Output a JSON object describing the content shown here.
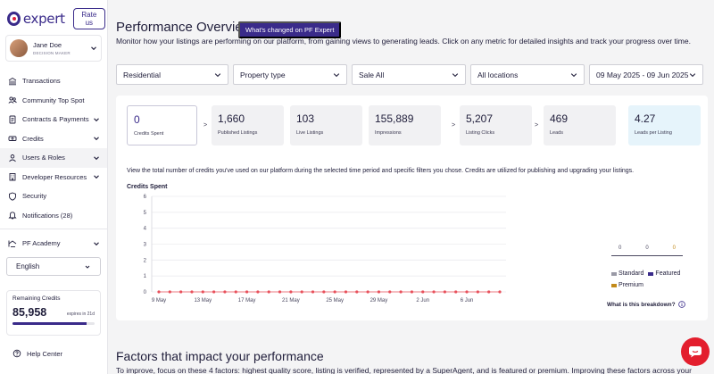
{
  "brand": {
    "logo_text": "expert",
    "rate_label": "Rate us"
  },
  "user": {
    "name": "Jane Doe",
    "role": "DECISION MAKER"
  },
  "sidebar": {
    "items": [
      {
        "label": "Transactions",
        "icon": "bank-icon",
        "expandable": false
      },
      {
        "label": "Community Top Spot",
        "icon": "users-group-icon",
        "expandable": false
      },
      {
        "label": "Contracts & Payments",
        "icon": "document-icon",
        "expandable": true
      },
      {
        "label": "Credits",
        "icon": "coins-icon",
        "expandable": true
      },
      {
        "label": "Users & Roles",
        "icon": "user-icon",
        "expandable": true,
        "active": true
      },
      {
        "label": "Developer Resources",
        "icon": "building-icon",
        "expandable": true
      },
      {
        "label": "Security",
        "icon": "shield-icon",
        "expandable": false
      },
      {
        "label": "Notifications (28)",
        "icon": "bell-icon",
        "expandable": false
      },
      {
        "label": "PF Academy",
        "icon": "academy-icon",
        "expandable": true
      }
    ],
    "language": "English",
    "remaining_credits": {
      "title": "Remaining Credits",
      "value": "85,958",
      "expires": "expires in 21d",
      "progress": 0.9
    },
    "help_label": "Help Center"
  },
  "main": {
    "title": "Performance Overview",
    "whats_changed": "What's changed on PF Expert",
    "subtitle": "Monitor how your listings are performing on our platform, from gaining views to generating leads. Click on any metric for detailed insights and track your progress over time.",
    "filters": [
      {
        "value": "Residential"
      },
      {
        "value": "Property type"
      },
      {
        "value": "Sale All"
      },
      {
        "value": "All locations"
      },
      {
        "value": "09 May 2025 - 09 Jun 2025"
      }
    ],
    "metrics": [
      {
        "value": "0",
        "label": "Credits Spent"
      },
      {
        "value": "1,660",
        "label": "Published Listings"
      },
      {
        "value": "103",
        "label": "Live Listings"
      },
      {
        "value": "155,889",
        "label": "Impressions"
      },
      {
        "value": "5,207",
        "label": "Listing Clicks"
      },
      {
        "value": "469",
        "label": "Leads"
      },
      {
        "value": "4.27",
        "label": "Leads per Listing"
      }
    ],
    "arrow_glyph": ">",
    "description": "View the total number of credits you've used on our platform during the selected time period and specific filters you chose. Credits are utilized for publishing and upgrading your listings.",
    "chart_title": "Credits Spent",
    "breakdown": {
      "standard": "0",
      "featured": "0",
      "premium": "0",
      "legend": [
        "Standard",
        "Featured",
        "Premium"
      ],
      "link": "What is this breakdown?"
    },
    "factors_title": "Factors that impact your performance",
    "factors_sub": "To improve, focus on these 4 factors: highest quality score, listing is verified, represented by a SuperAgent, and is featured or premium. Improving these factors across your"
  },
  "colors": {
    "brand": "#3a2b8a",
    "accent": "#e31e2d",
    "standard": "#9a9aa6",
    "featured": "#3a2b8a",
    "premium": "#c28a1a"
  },
  "chart_data": {
    "type": "line",
    "title": "Credits Spent",
    "xlabel": "",
    "ylabel": "",
    "ylim": [
      0,
      6
    ],
    "y_ticks": [
      0,
      1,
      2,
      3,
      4,
      5,
      6
    ],
    "x_tick_labels": [
      "9 May",
      "13 May",
      "17 May",
      "21 May",
      "25 May",
      "29 May",
      "2 Jun",
      "6 Jun"
    ],
    "x": [
      "9 May",
      "10 May",
      "11 May",
      "12 May",
      "13 May",
      "14 May",
      "15 May",
      "16 May",
      "17 May",
      "18 May",
      "19 May",
      "20 May",
      "21 May",
      "22 May",
      "23 May",
      "24 May",
      "25 May",
      "26 May",
      "27 May",
      "28 May",
      "29 May",
      "30 May",
      "31 May",
      "1 Jun",
      "2 Jun",
      "3 Jun",
      "4 Jun",
      "5 Jun",
      "6 Jun",
      "7 Jun",
      "8 Jun",
      "9 Jun"
    ],
    "series": [
      {
        "values": [
          0,
          0,
          0,
          0,
          0,
          0,
          0,
          0,
          0,
          0,
          0,
          0,
          0,
          0,
          0,
          0,
          0,
          0,
          0,
          0,
          0,
          0,
          0,
          0,
          0,
          0,
          0,
          0,
          0,
          0,
          0,
          0
        ],
        "color": "#e8505b"
      }
    ],
    "grid": true
  }
}
